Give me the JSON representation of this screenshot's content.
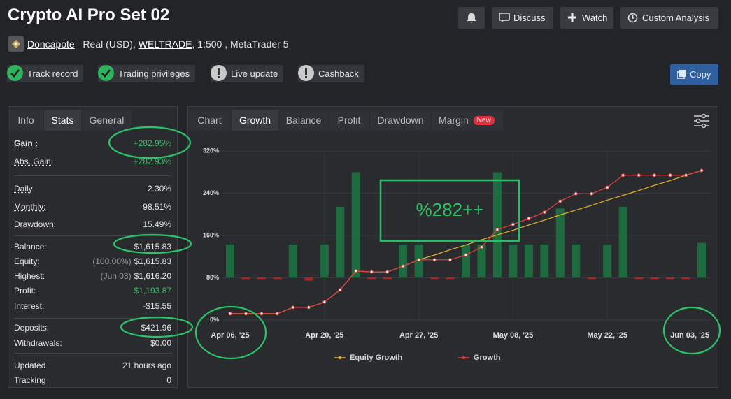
{
  "header": {
    "title": "Crypto AI Pro Set 02",
    "buttons": [
      "Discuss",
      "Watch",
      "Custom Analysis"
    ],
    "copy": "Copy"
  },
  "account": {
    "user": "Doncapote",
    "type": "Real (USD),",
    "broker": "WELTRADE",
    "details": ", 1:500 , MetaTrader 5"
  },
  "badges": [
    {
      "label": "Track record",
      "verified": true
    },
    {
      "label": "Trading privileges",
      "verified": true
    },
    {
      "label": "Live update",
      "verified": false
    },
    {
      "label": "Cashback",
      "verified": false
    }
  ],
  "left_tabs": [
    "Info",
    "Stats",
    "General"
  ],
  "active_left_tab": 1,
  "stats": [
    [
      {
        "label": "Gain :",
        "value": "+282.95%",
        "color": "#3fbf6a",
        "underline": true,
        "bold": true
      },
      {
        "label": "Abs. Gain:",
        "value": "+282.93%",
        "color": "#3fbf6a",
        "underline": true
      }
    ],
    [
      {
        "label": "Daily",
        "value": "2.30%",
        "underline": true
      },
      {
        "label": "Monthly:",
        "value": "98.51%",
        "underline": true
      },
      {
        "label": "Drawdown:",
        "value": "15.49%",
        "underline": true
      }
    ],
    [
      {
        "label": "Balance:",
        "value": "$1,615.83"
      },
      {
        "label": "Equity:",
        "note": "(100.00%)",
        "value": "$1,615.83"
      },
      {
        "label": "Highest:",
        "note": "(Jun 03)",
        "value": "$1,616.20"
      },
      {
        "label": "Profit:",
        "value": "$1,193.87",
        "color": "#3fbf6a"
      },
      {
        "label": "Interest:",
        "value": "-$15.55"
      }
    ],
    [
      {
        "label": "Deposits:",
        "value": "$421.96"
      },
      {
        "label": "Withdrawals:",
        "value": "$0.00"
      }
    ],
    [
      {
        "label": "Updated",
        "value": "21 hours ago"
      },
      {
        "label": "Tracking",
        "value": "0"
      }
    ]
  ],
  "chart_tabs": [
    "Chart",
    "Growth",
    "Balance",
    "Profit",
    "Drawdown",
    "Margin"
  ],
  "active_chart_tab": 1,
  "new_badge": "New",
  "chart_data": {
    "type": "line",
    "annotation": "%282++",
    "categories": [
      "Apr 06, '25",
      null,
      null,
      null,
      null,
      null,
      "Apr 20, '25",
      null,
      null,
      null,
      null,
      null,
      "Apr 27, '25",
      null,
      null,
      null,
      null,
      null,
      "May 08, '25",
      null,
      null,
      null,
      null,
      null,
      "May 22, '25",
      null,
      null,
      null,
      null,
      null,
      "Jun 03, '25"
    ],
    "ylim": [
      0,
      320
    ],
    "yticks": [
      {
        "value": 0,
        "label": "0%"
      },
      {
        "value": 80,
        "label": "80%"
      },
      {
        "value": 160,
        "label": "160%"
      },
      {
        "value": 240,
        "label": "240%"
      },
      {
        "value": 320,
        "label": "320%"
      }
    ],
    "y2lim": [
      -1.3,
      3.85
    ],
    "grid": true,
    "series": [
      {
        "name": "Equity Growth",
        "color": "#e6b422",
        "values": [
          12,
          12,
          12,
          12,
          24,
          24,
          34,
          57,
          93,
          91,
          91,
          102,
          114,
          123,
          133,
          142,
          152,
          161,
          170,
          180,
          189,
          199,
          208,
          217,
          227,
          236,
          245,
          255,
          264,
          274,
          283
        ]
      },
      {
        "name": "Growth",
        "color": "#e8403f",
        "values": [
          12,
          12,
          12,
          12,
          24,
          24,
          34,
          57,
          93,
          91,
          91,
          102,
          114,
          114,
          114,
          123,
          138,
          171,
          181,
          192,
          204,
          225,
          239,
          239,
          251,
          274,
          274,
          274,
          274,
          274,
          283
        ]
      },
      {
        "type": "bar",
        "axis": "y2",
        "color": "#1f6b40",
        "negative_color": "#a8282a",
        "values": [
          1,
          -0.05,
          -0.05,
          -0.05,
          1,
          -0.1,
          1,
          2.15,
          3.2,
          -0.05,
          -0.05,
          1,
          1,
          -0.05,
          -0.05,
          1,
          1,
          3.2,
          1,
          1,
          1,
          2.1,
          1,
          -0.05,
          1,
          2.15,
          -0.05,
          -0.05,
          -0.05,
          -0.05,
          1.05
        ]
      }
    ]
  }
}
